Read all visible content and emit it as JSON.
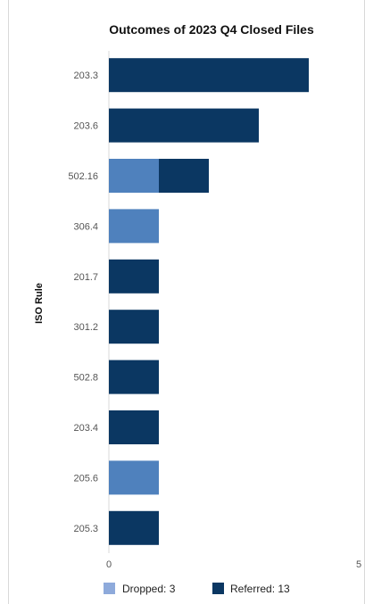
{
  "chart_data": {
    "type": "bar",
    "orientation": "horizontal",
    "stacked": true,
    "title": "Outcomes of 2023 Q4 Closed Files",
    "ylabel": "ISO Rule",
    "xlabel": "",
    "categories": [
      "203.3",
      "203.6",
      "502.16",
      "306.4",
      "201.7",
      "301.2",
      "502.8",
      "203.4",
      "205.6",
      "205.3"
    ],
    "series": [
      {
        "name": "Dropped",
        "color": "#4f81bd",
        "values": [
          0,
          0,
          1,
          1,
          0,
          0,
          0,
          0,
          1,
          0
        ]
      },
      {
        "name": "Referred",
        "color": "#0b3762",
        "values": [
          4,
          3,
          1,
          0,
          1,
          1,
          1,
          1,
          0,
          1
        ]
      }
    ],
    "xlim": [
      0,
      5
    ],
    "xticks": [
      "0",
      "5"
    ],
    "grid": false,
    "legend_position": "bottom",
    "legend": [
      {
        "label": "Dropped: 3",
        "color": "#8eaadb"
      },
      {
        "label": "Referred: 13",
        "color": "#0b3762"
      }
    ]
  }
}
